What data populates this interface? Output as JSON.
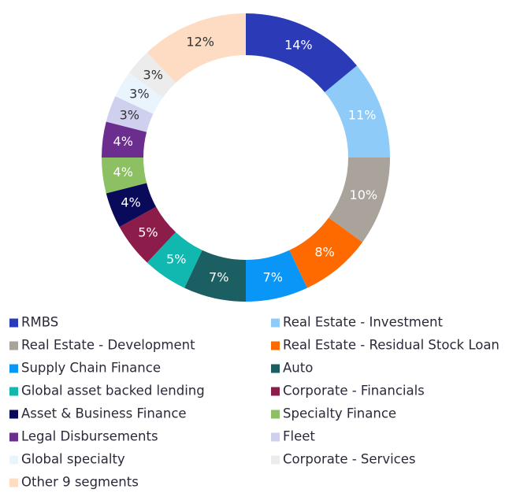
{
  "chart_data": {
    "type": "donut",
    "categories": [
      "RMBS",
      "Real Estate - Investment",
      "Real Estate - Development",
      "Real Estate - Residual Stock Loan",
      "Supply Chain Finance",
      "Auto",
      "Global asset backed lending",
      "Corporate - Financials",
      "Asset & Business Finance",
      "Specialty Finance",
      "Legal Disbursements",
      "Fleet",
      "Global specialty",
      "Corporate - Services",
      "Other 9 segments"
    ],
    "values": [
      14,
      11,
      10,
      8,
      7,
      7,
      5,
      5,
      4,
      4,
      4,
      3,
      3,
      3,
      12
    ],
    "value_labels": [
      "14%",
      "11%",
      "10%",
      "8%",
      "7%",
      "7%",
      "5%",
      "5%",
      "4%",
      "4%",
      "4%",
      "3%",
      "3%",
      "3%",
      "12%"
    ],
    "colors": [
      "#2b3bb8",
      "#8fcbf9",
      "#a9a39c",
      "#ff6a00",
      "#0a96f7",
      "#1c5f63",
      "#10b8b0",
      "#8c1c4a",
      "#0a0a5a",
      "#8cc063",
      "#6b2e8e",
      "#cfd0ee",
      "#e9f4fd",
      "#ececec",
      "#fddcc3"
    ],
    "legend": "bottom"
  }
}
